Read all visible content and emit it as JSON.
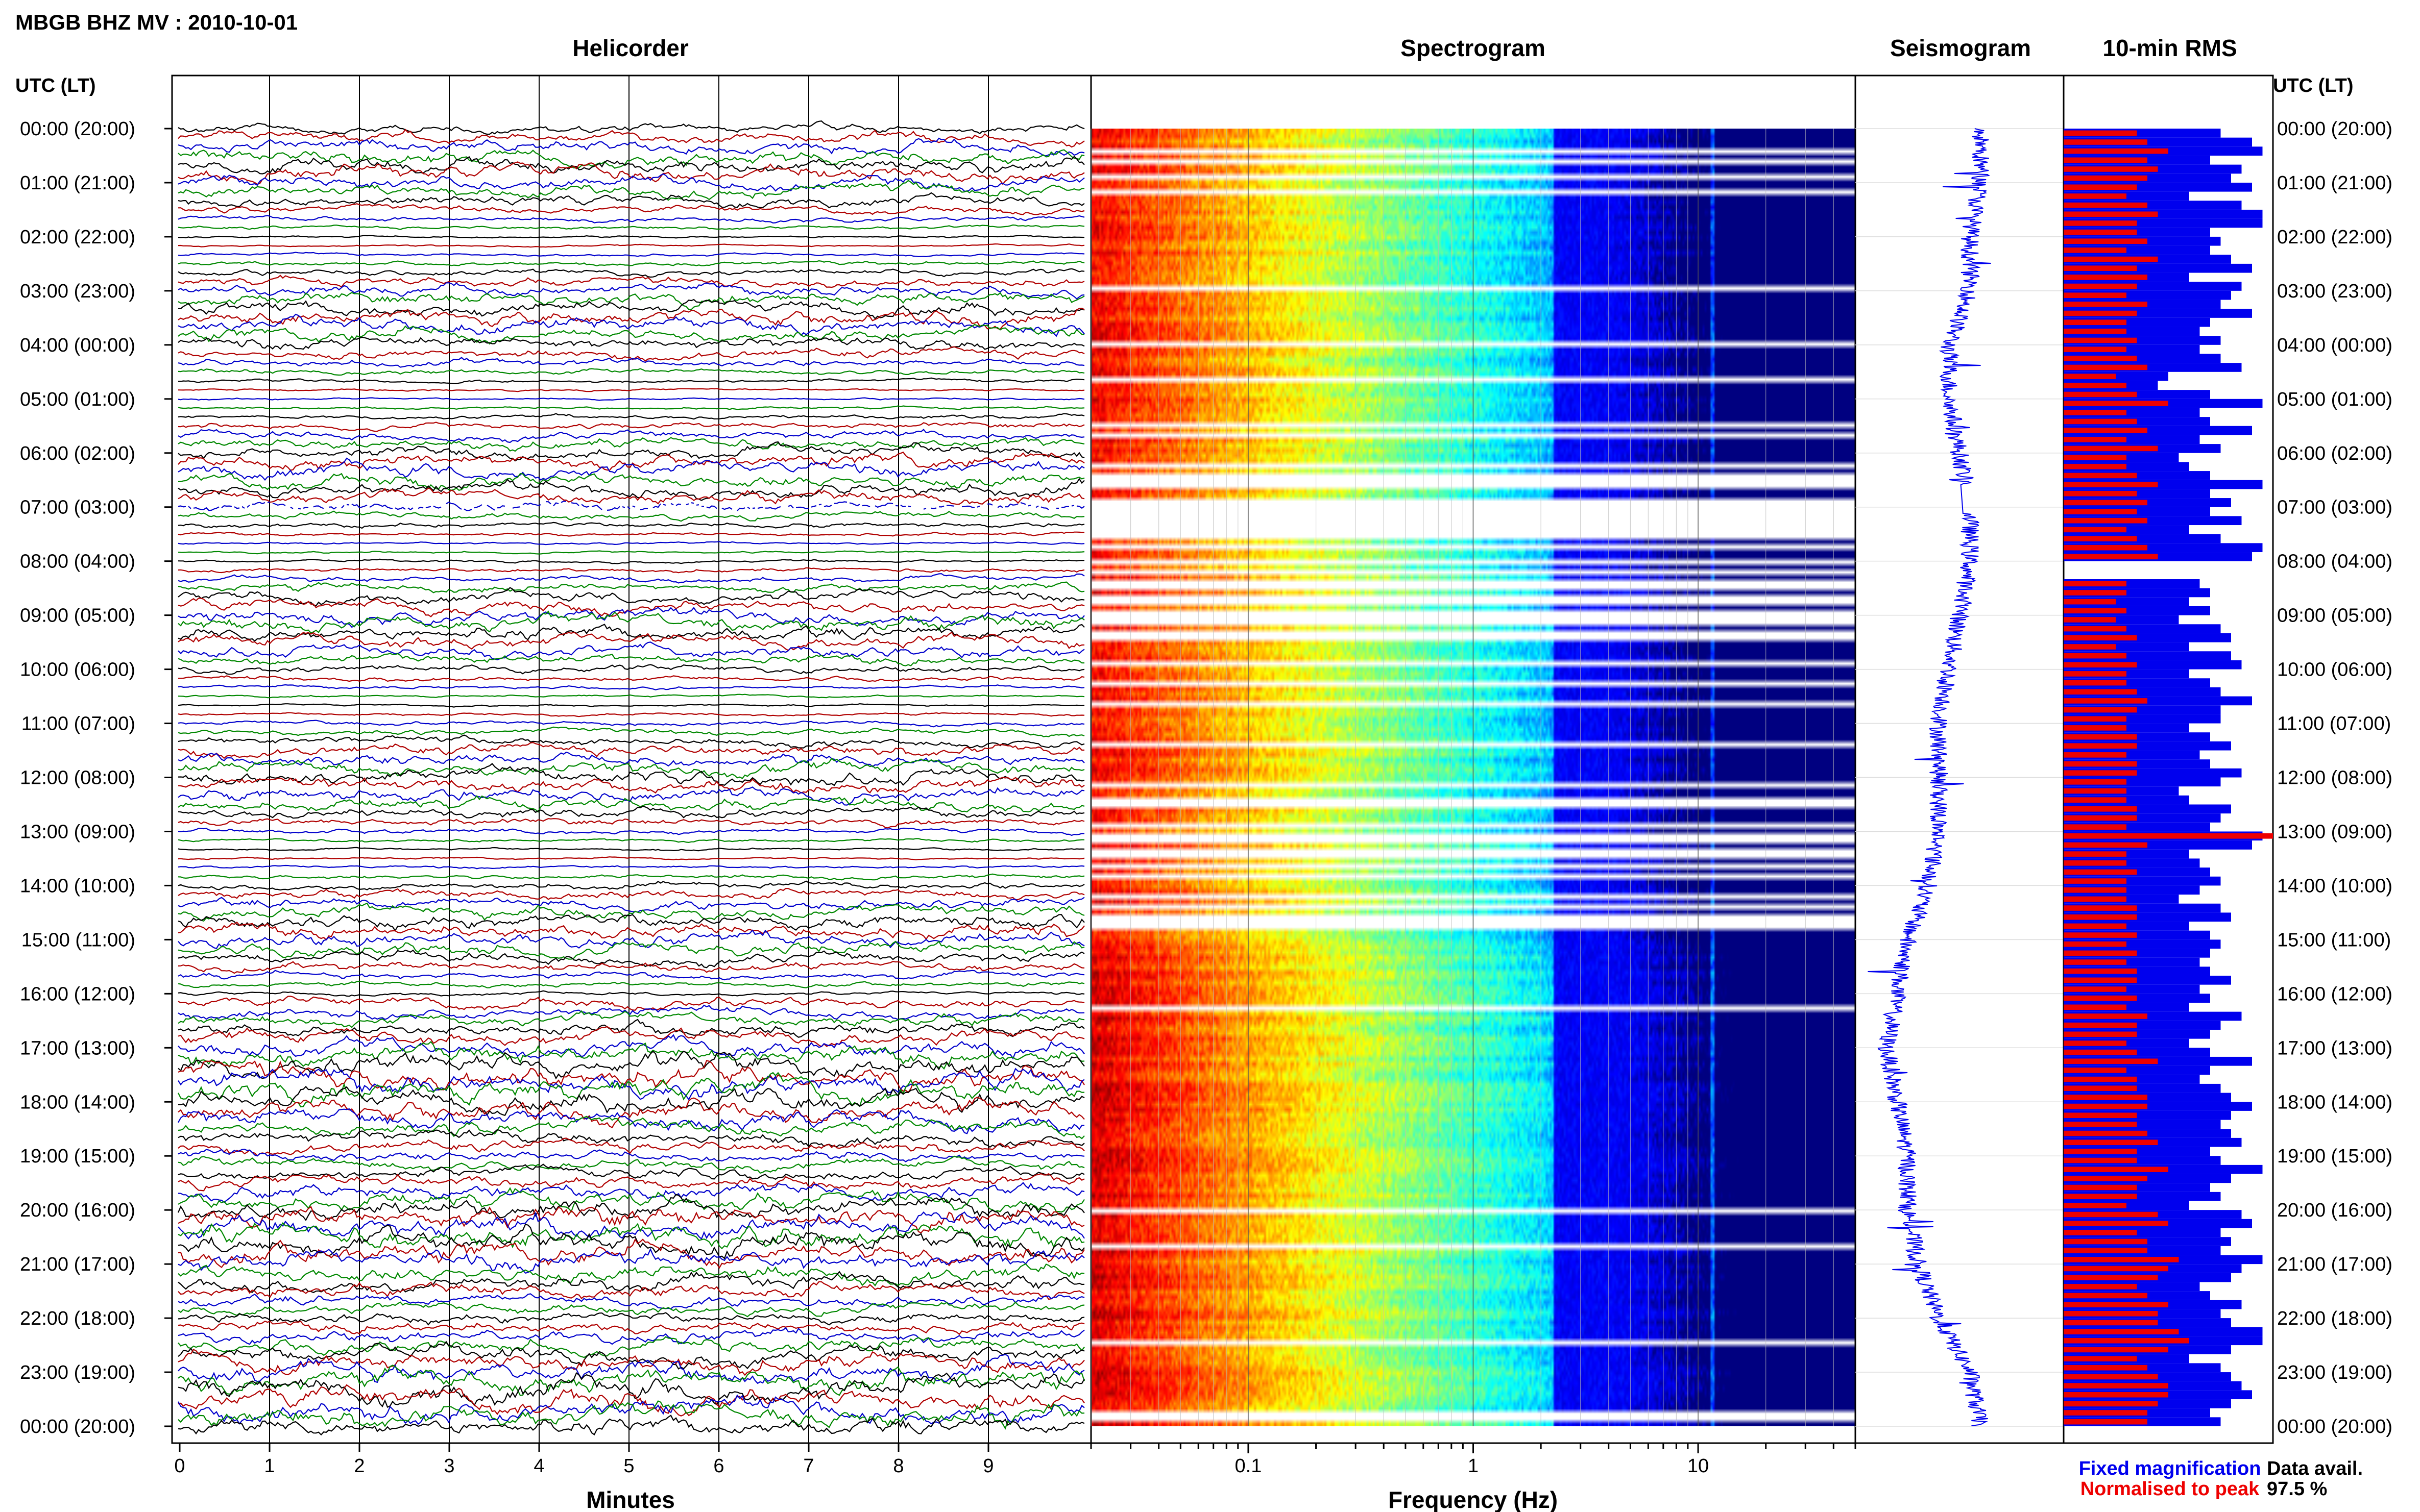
{
  "chart_data": {
    "type": "seismic-daily-summary",
    "title": "MBGB BHZ MV : 2010-10-01",
    "time_axis_label": "UTC (LT)",
    "time_labels": [
      "00:00 (20:00)",
      "01:00 (21:00)",
      "02:00 (22:00)",
      "03:00 (23:00)",
      "04:00 (00:00)",
      "05:00 (01:00)",
      "06:00 (02:00)",
      "07:00 (03:00)",
      "08:00 (04:00)",
      "09:00 (05:00)",
      "10:00 (06:00)",
      "11:00 (07:00)",
      "12:00 (08:00)",
      "13:00 (09:00)",
      "14:00 (10:00)",
      "15:00 (11:00)",
      "16:00 (12:00)",
      "17:00 (13:00)",
      "18:00 (14:00)",
      "19:00 (15:00)",
      "20:00 (16:00)",
      "21:00 (17:00)",
      "22:00 (18:00)",
      "23:00 (19:00)",
      "00:00 (20:00)"
    ],
    "panels": {
      "helicorder": {
        "title": "Helicorder",
        "xlabel": "Minutes",
        "xticks": [
          "0",
          "1",
          "2",
          "3",
          "4",
          "5",
          "6",
          "7",
          "8",
          "9"
        ],
        "xlim": [
          0,
          10
        ],
        "trace_minutes": 10,
        "traces_per_hour": 6,
        "trace_colors": [
          "#000000",
          "#b00000",
          "#0000cc",
          "#008800"
        ],
        "gap_hours": [
          7.0
        ]
      },
      "spectrogram": {
        "title": "Spectrogram",
        "xlabel": "Frequency (Hz)",
        "xscale": "log",
        "xlim": [
          0.02,
          50
        ],
        "xticks": [
          "0.1",
          "1",
          "10"
        ],
        "gap_hours": [
          0.35,
          0.55,
          0.8,
          1.1,
          2.95,
          3.95,
          4.55,
          5.45,
          5.6,
          6.2,
          6.35,
          6.45,
          6.5,
          6.6,
          7.0,
          7.1,
          7.2,
          7.3,
          7.4,
          7.5,
          7.7,
          8.0,
          8.2,
          8.3,
          8.45,
          8.6,
          8.75,
          8.9,
          9.0,
          9.1,
          9.25,
          9.35,
          9.8,
          10.2,
          10.6,
          11.3,
          12.05,
          12.1,
          12.35,
          12.45,
          12.85,
          13.0,
          13.1,
          13.3,
          13.45,
          13.6,
          13.75,
          14.15,
          14.3,
          14.5,
          14.65,
          14.7,
          16.2,
          20.0,
          20.6,
          22.4,
          23.75,
          23.85
        ]
      },
      "seismogram": {
        "title": "Seismogram",
        "offset_profile": [
          [
            0,
            0.6
          ],
          [
            1,
            0.6
          ],
          [
            2,
            0.55
          ],
          [
            3,
            0.55
          ],
          [
            4,
            0.45
          ],
          [
            5,
            0.45
          ],
          [
            6,
            0.5
          ],
          [
            7,
            0.55
          ],
          [
            8,
            0.55
          ],
          [
            9,
            0.5
          ],
          [
            10,
            0.45
          ],
          [
            11,
            0.4
          ],
          [
            12,
            0.4
          ],
          [
            13,
            0.4
          ],
          [
            14,
            0.35
          ],
          [
            15,
            0.25
          ],
          [
            16,
            0.2
          ],
          [
            17,
            0.15
          ],
          [
            18,
            0.2
          ],
          [
            19,
            0.25
          ],
          [
            20,
            0.25
          ],
          [
            21,
            0.3
          ],
          [
            22,
            0.4
          ],
          [
            23,
            0.55
          ],
          [
            24,
            0.6
          ]
        ]
      },
      "rms": {
        "title": "10-min RMS",
        "bins_per_hour": 6,
        "fixed_magnification": [
          0.75,
          0.9,
          0.95,
          0.7,
          0.85,
          0.8,
          0.9,
          0.6,
          0.85,
          0.95,
          0.95,
          0.7,
          0.75,
          0.7,
          0.8,
          0.9,
          0.6,
          0.85,
          0.8,
          0.75,
          0.9,
          0.7,
          0.65,
          0.75,
          0.65,
          0.75,
          0.85,
          0.5,
          0.45,
          0.7,
          0.95,
          0.65,
          0.7,
          0.9,
          0.65,
          0.75,
          0.55,
          0.6,
          0.7,
          0.95,
          0.7,
          0.8,
          0.7,
          0.85,
          0.6,
          0.75,
          0.95,
          0.9,
          0,
          0,
          0.65,
          0.7,
          0.6,
          0.7,
          0.55,
          0.75,
          0.8,
          0.6,
          0.8,
          0.85,
          0.6,
          0.7,
          0.75,
          0.9,
          0.75,
          0.75,
          0.6,
          0.7,
          0.8,
          0.65,
          0.7,
          0.85,
          0.75,
          0.55,
          0.6,
          0.8,
          0.75,
          0.7,
          0.95,
          0.9,
          0.6,
          0.65,
          0.7,
          0.75,
          0.65,
          0.55,
          0.75,
          0.8,
          0.6,
          0.7,
          0.75,
          0.7,
          0.65,
          0.7,
          0.8,
          0.65,
          0.7,
          0.6,
          0.85,
          0.75,
          0.7,
          0.6,
          0.7,
          0.9,
          0.7,
          0.65,
          0.75,
          0.8,
          0.9,
          0.8,
          0.75,
          0.8,
          0.85,
          0.7,
          0.75,
          0.95,
          0.8,
          0.7,
          0.75,
          0.6,
          0.85,
          0.9,
          0.75,
          0.8,
          0.75,
          0.95,
          0.85,
          0.8,
          0.65,
          0.7,
          0.85,
          0.75,
          0.8,
          0.95,
          0.95,
          0.8,
          0.6,
          0.75,
          0.8,
          0.85,
          0.9,
          0.8,
          0.7,
          0.75
        ],
        "normalised_to_peak": [
          0.35,
          0.4,
          0.5,
          0.4,
          0.45,
          0.4,
          0.35,
          0.3,
          0.4,
          0.45,
          0.35,
          0.35,
          0.4,
          0.3,
          0.45,
          0.35,
          0.4,
          0.35,
          0.3,
          0.4,
          0.35,
          0.3,
          0.3,
          0.35,
          0.3,
          0.35,
          0.4,
          0.25,
          0.3,
          0.35,
          0.5,
          0.3,
          0.35,
          0.4,
          0.3,
          0.45,
          0.3,
          0.3,
          0.35,
          0.45,
          0.35,
          0.4,
          0.35,
          0.4,
          0.3,
          0.35,
          0.4,
          0.45,
          0,
          0,
          0.3,
          0.3,
          0.25,
          0.3,
          0.25,
          0.3,
          0.35,
          0.25,
          0.3,
          0.35,
          0.3,
          0.3,
          0.35,
          0.4,
          0.35,
          0.3,
          0.3,
          0.35,
          0.35,
          0.3,
          0.35,
          0.35,
          0.3,
          0.3,
          0.3,
          0.35,
          0.35,
          0.3,
          1.0,
          0.4,
          0.3,
          0.3,
          0.35,
          0.3,
          0.3,
          0.3,
          0.35,
          0.35,
          0.3,
          0.35,
          0.3,
          0.35,
          0.3,
          0.35,
          0.35,
          0.3,
          0.35,
          0.3,
          0.4,
          0.35,
          0.35,
          0.3,
          0.35,
          0.45,
          0.3,
          0.35,
          0.35,
          0.4,
          0.4,
          0.35,
          0.35,
          0.4,
          0.45,
          0.35,
          0.35,
          0.5,
          0.4,
          0.35,
          0.35,
          0.3,
          0.45,
          0.5,
          0.35,
          0.4,
          0.4,
          0.55,
          0.5,
          0.45,
          0.35,
          0.4,
          0.5,
          0.45,
          0.45,
          0.55,
          0.6,
          0.5,
          0.35,
          0.4,
          0.45,
          0.5,
          0.5,
          0.45,
          0.4,
          0.4
        ]
      }
    },
    "legend": {
      "fixed": {
        "label": "Fixed magnification",
        "color": "#0000ee"
      },
      "normalised": {
        "label": "Normalised to peak",
        "color": "#ee0000"
      }
    },
    "data_availability": {
      "label": "Data avail.",
      "value": "97.5 %"
    }
  }
}
